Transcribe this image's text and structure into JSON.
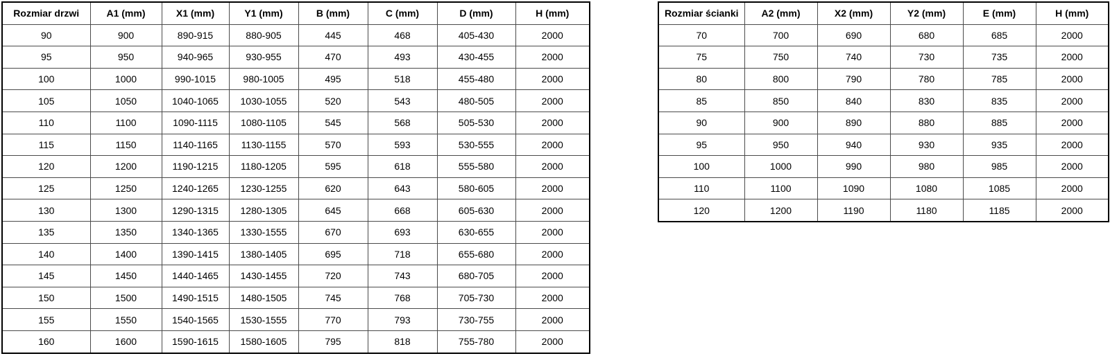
{
  "colors": {
    "background": "#ffffff",
    "text": "#000000",
    "border_outer": "#000000",
    "border_inner": "#4a4a4a"
  },
  "tables": [
    {
      "name": "door-size-table",
      "headers": [
        "Rozmiar drzwi",
        "A1 (mm)",
        "X1 (mm)",
        "Y1 (mm)",
        "B (mm)",
        "C (mm)",
        "D (mm)",
        "H (mm)"
      ],
      "rows": [
        [
          "90",
          "900",
          "890-915",
          "880-905",
          "445",
          "468",
          "405-430",
          "2000"
        ],
        [
          "95",
          "950",
          "940-965",
          "930-955",
          "470",
          "493",
          "430-455",
          "2000"
        ],
        [
          "100",
          "1000",
          "990-1015",
          "980-1005",
          "495",
          "518",
          "455-480",
          "2000"
        ],
        [
          "105",
          "1050",
          "1040-1065",
          "1030-1055",
          "520",
          "543",
          "480-505",
          "2000"
        ],
        [
          "110",
          "1100",
          "1090-1115",
          "1080-1105",
          "545",
          "568",
          "505-530",
          "2000"
        ],
        [
          "115",
          "1150",
          "1140-1165",
          "1130-1155",
          "570",
          "593",
          "530-555",
          "2000"
        ],
        [
          "120",
          "1200",
          "1190-1215",
          "1180-1205",
          "595",
          "618",
          "555-580",
          "2000"
        ],
        [
          "125",
          "1250",
          "1240-1265",
          "1230-1255",
          "620",
          "643",
          "580-605",
          "2000"
        ],
        [
          "130",
          "1300",
          "1290-1315",
          "1280-1305",
          "645",
          "668",
          "605-630",
          "2000"
        ],
        [
          "135",
          "1350",
          "1340-1365",
          "1330-1555",
          "670",
          "693",
          "630-655",
          "2000"
        ],
        [
          "140",
          "1400",
          "1390-1415",
          "1380-1405",
          "695",
          "718",
          "655-680",
          "2000"
        ],
        [
          "145",
          "1450",
          "1440-1465",
          "1430-1455",
          "720",
          "743",
          "680-705",
          "2000"
        ],
        [
          "150",
          "1500",
          "1490-1515",
          "1480-1505",
          "745",
          "768",
          "705-730",
          "2000"
        ],
        [
          "155",
          "1550",
          "1540-1565",
          "1530-1555",
          "770",
          "793",
          "730-755",
          "2000"
        ],
        [
          "160",
          "1600",
          "1590-1615",
          "1580-1605",
          "795",
          "818",
          "755-780",
          "2000"
        ]
      ]
    },
    {
      "name": "wall-size-table",
      "headers": [
        "Rozmiar ścianki",
        "A2 (mm)",
        "X2 (mm)",
        "Y2 (mm)",
        "E (mm)",
        "H (mm)"
      ],
      "rows": [
        [
          "70",
          "700",
          "690",
          "680",
          "685",
          "2000"
        ],
        [
          "75",
          "750",
          "740",
          "730",
          "735",
          "2000"
        ],
        [
          "80",
          "800",
          "790",
          "780",
          "785",
          "2000"
        ],
        [
          "85",
          "850",
          "840",
          "830",
          "835",
          "2000"
        ],
        [
          "90",
          "900",
          "890",
          "880",
          "885",
          "2000"
        ],
        [
          "95",
          "950",
          "940",
          "930",
          "935",
          "2000"
        ],
        [
          "100",
          "1000",
          "990",
          "980",
          "985",
          "2000"
        ],
        [
          "110",
          "1100",
          "1090",
          "1080",
          "1085",
          "2000"
        ],
        [
          "120",
          "1200",
          "1190",
          "1180",
          "1185",
          "2000"
        ]
      ]
    }
  ]
}
